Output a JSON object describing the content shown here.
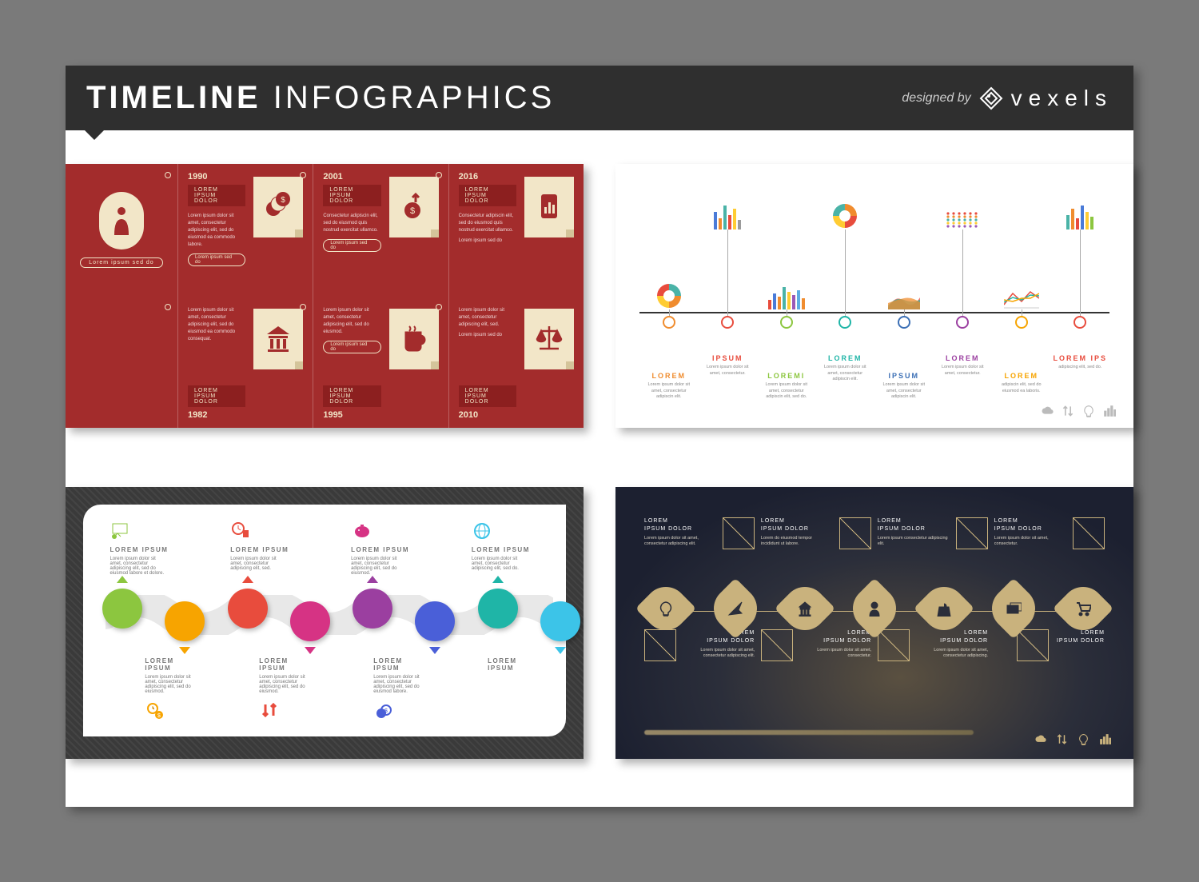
{
  "header": {
    "title_bold": "TIMELINE",
    "title_light": "INFOGRAPHICS",
    "designed_by": "designed by",
    "brand": "vexels"
  },
  "panel1": {
    "background": "#a32c2c",
    "paper": "#f2e6c8",
    "avatar_label": "Lorem ipsum sed do",
    "top": [
      {
        "year": "1990",
        "tag": "LOREM IPSUM DOLOR",
        "body": "Lorem ipsum dolor sit amet, consectetur adipiscing elit, sed do eiusmod ea commodo labore.",
        "pill": "Lorem ipsum sed do",
        "icon": "coins"
      },
      {
        "year": "2001",
        "tag": "LOREM IPSUM DOLOR",
        "body": "Consectetur adipiscin elit, sed do eiusmod quis nostrud exercitat ullamco.",
        "pill": "Lorem ipsum sed do",
        "icon": "arrow-dollar"
      },
      {
        "year": "2016",
        "tag": "LOREM IPSUM DOLOR",
        "body": "Consectetur adipiscin elit, sed do eiusmod quis nostrud exercitat ullamco.",
        "note": "Lorem ipsum sed do",
        "icon": "phone-chart"
      }
    ],
    "bottom": [
      {
        "year": "1982",
        "tag": "LOREM IPSUM DOLOR",
        "body": "Lorem ipsum dolor sit amet, consectetur adipiscing elit, sed do eiusmod ea commodo consequat.",
        "icon": "bank"
      },
      {
        "year": "1995",
        "tag": "LOREM IPSUM DOLOR",
        "body": "Lorem ipsum dolor sit amet, consectetur adipiscing elit, sed do eiusmod.",
        "pill": "Lorem ipsum sed do",
        "icon": "mug"
      },
      {
        "year": "2010",
        "tag": "LOREM IPSUM DOLOR",
        "body": "Lorem ipsum dolor sit amet, consectetur adipiscing elit, sed.",
        "note": "Lorem ipsum sed do",
        "icon": "scales"
      }
    ]
  },
  "panel2": {
    "items": [
      {
        "label": "LOREM",
        "color": "#f08c2e",
        "desc": "Lorem ipsum dolor sit amet, consectetur adipiscin elit.",
        "chart": {
          "type": "donut",
          "colors": [
            "#f08c2e",
            "#ffcc33",
            "#e84c3d",
            "#4ab3a7"
          ]
        }
      },
      {
        "label": "IPSUM",
        "color": "#e84c3d",
        "desc": "Lorem ipsum dolor sit amet, consectetur.",
        "chart": {
          "type": "bars",
          "heights": [
            22,
            14,
            30,
            18,
            26,
            12
          ],
          "colors": [
            "#4a7bd8",
            "#f08c2e",
            "#4ab3a7",
            "#e84c3d",
            "#ffcc33",
            "#9b9b9b"
          ]
        }
      },
      {
        "label": "LOREMI",
        "color": "#8cc63f",
        "desc": "Lorem ipsum dolor sit amet, consectetur adipiscin elit, sed do.",
        "chart": {
          "type": "bars",
          "heights": [
            12,
            20,
            16,
            28,
            22,
            18,
            24,
            14
          ],
          "colors": [
            "#e84c3d",
            "#4a7bd8",
            "#f08c2e",
            "#4ab3a7",
            "#ffcc33",
            "#9b59b6",
            "#5dade2",
            "#f08c2e"
          ]
        }
      },
      {
        "label": "LOREM",
        "color": "#1fb5a7",
        "desc": "Lorem ipsum dolor sit amet, consectetur adipiscin elit.",
        "chart": {
          "type": "donut",
          "colors": [
            "#e84c3d",
            "#ffcc33",
            "#4ab3a7",
            "#f08c2e"
          ]
        }
      },
      {
        "label": "IPSUM",
        "color": "#3b6fb5",
        "desc": "Lorem ipsum dolor sit amet, consectetur adipiscin elit.",
        "chart": {
          "type": "area",
          "colors": [
            "#e84c3d",
            "#1fb5a7",
            "#f08c2e"
          ]
        }
      },
      {
        "label": "LOREM",
        "color": "#9b3fa0",
        "desc": "Lorem ipsum dolor sit amet, consectetur.",
        "chart": {
          "type": "dots",
          "colors": [
            "#e84c3d",
            "#f08c2e",
            "#4ab3a7",
            "#ffcc33",
            "#9b59b6"
          ]
        }
      },
      {
        "label": "LOREM",
        "color": "#f7a400",
        "desc": "adipiscin elit, sed do eiusmod ea laboris.",
        "chart": {
          "type": "lines",
          "colors": [
            "#e84c3d",
            "#1fb5a7",
            "#f7a400"
          ]
        }
      },
      {
        "label": "LOREM IPS",
        "color": "#e84c3d",
        "desc": "adipiscing elit, sed do.",
        "chart": {
          "type": "bars",
          "heights": [
            18,
            26,
            14,
            30,
            22,
            16
          ],
          "colors": [
            "#4ab3a7",
            "#f08c2e",
            "#e84c3d",
            "#4a7bd8",
            "#ffcc33",
            "#8cc63f"
          ]
        }
      }
    ],
    "footer_icons": [
      "cloud",
      "sort",
      "bulb",
      "bars"
    ]
  },
  "panel3": {
    "colors": [
      "#8cc63f",
      "#f7a400",
      "#e84c3d",
      "#d63384",
      "#9b3fa0",
      "#4a5fd8",
      "#1fb5a7",
      "#3cc4e8"
    ],
    "top": [
      {
        "title": "LOREM IPSUM",
        "body": "Lorem ipsum dolor sit amet, consectetur adipiscing elit, sed do eiusmod labore et dolore.",
        "icon": "presenter",
        "ic": "#8cc63f"
      },
      {
        "title": "LOREM IPSUM",
        "body": "Lorem ipsum dolor sit amet, consectetur adipiscing elit, sed.",
        "icon": "clock-mug",
        "ic": "#e84c3d"
      },
      {
        "title": "LOREM IPSUM",
        "body": "Lorem ipsum dolor sit amet, consectetur adipiscing elit, sed do eiusmod.",
        "icon": "piggy",
        "ic": "#d63384"
      },
      {
        "title": "LOREM IPSUM",
        "body": "Lorem ipsum dolor sit amet, consectetur adipiscing elit, sed do.",
        "icon": "globe",
        "ic": "#3cc4e8"
      }
    ],
    "bottom": [
      {
        "title": "LOREM IPSUM",
        "body": "Lorem ipsum dolor sit amet, consectetur adipiscing elit, sed do eiusmod.",
        "icon": "clock-dollar",
        "ic": "#f7a400"
      },
      {
        "title": "LOREM IPSUM",
        "body": "Lorem ipsum dolor sit amet, consectetur adipiscing elit, sed do eiusmod.",
        "icon": "arrows",
        "ic": "#e84c3d"
      },
      {
        "title": "LOREM IPSUM",
        "body": "Lorem ipsum dolor sit amet, consectetur adipiscing elit, sed do eiusmod labore.",
        "icon": "coins-dollar",
        "ic": "#4a5fd8"
      },
      {
        "title": "LOREM IPSUM",
        "body": "",
        "icon": "",
        "ic": ""
      }
    ]
  },
  "panel4": {
    "accent": "#c9b27d",
    "top": [
      {
        "h1": "LOREM",
        "h2": "IPSUM DOLOR",
        "body": "Lorem ipsum dolor sit amet, consectetur adipiscing elit."
      },
      {
        "h1": "LOREM",
        "h2": "IPSUM DOLOR",
        "body": "Lorem do eiusmod tempor incididunt ut labore."
      },
      {
        "h1": "LOREM",
        "h2": "IPSUM DOLOR",
        "body": "Lorem ipsum consectetur adipiscing elit."
      },
      {
        "h1": "LOREM",
        "h2": "IPSUM DOLOR",
        "body": "Lorem ipsum dolor sit amet, consectetur."
      }
    ],
    "bottom": [
      {
        "h1": "LOREM",
        "h2": "IPSUM DOLOR",
        "body": "Lorem ipsum dolor sit amet, consectetur adipiscing elit."
      },
      {
        "h1": "LOREM",
        "h2": "IPSUM DOLOR",
        "body": "Lorem ipsum dolor sit amet, consectetur."
      },
      {
        "h1": "LOREM",
        "h2": "IPSUM DOLOR",
        "body": "Lorem ipsum dolor sit amet, consectetur adipiscing."
      },
      {
        "h1": "LOREM",
        "h2": "IPSUM DOLOR",
        "body": ""
      }
    ],
    "nodes": [
      "bulb",
      "plane",
      "bank",
      "person",
      "bag",
      "cards",
      "cart"
    ],
    "footer_icons": [
      "cloud",
      "sort",
      "bulb",
      "bars"
    ]
  }
}
